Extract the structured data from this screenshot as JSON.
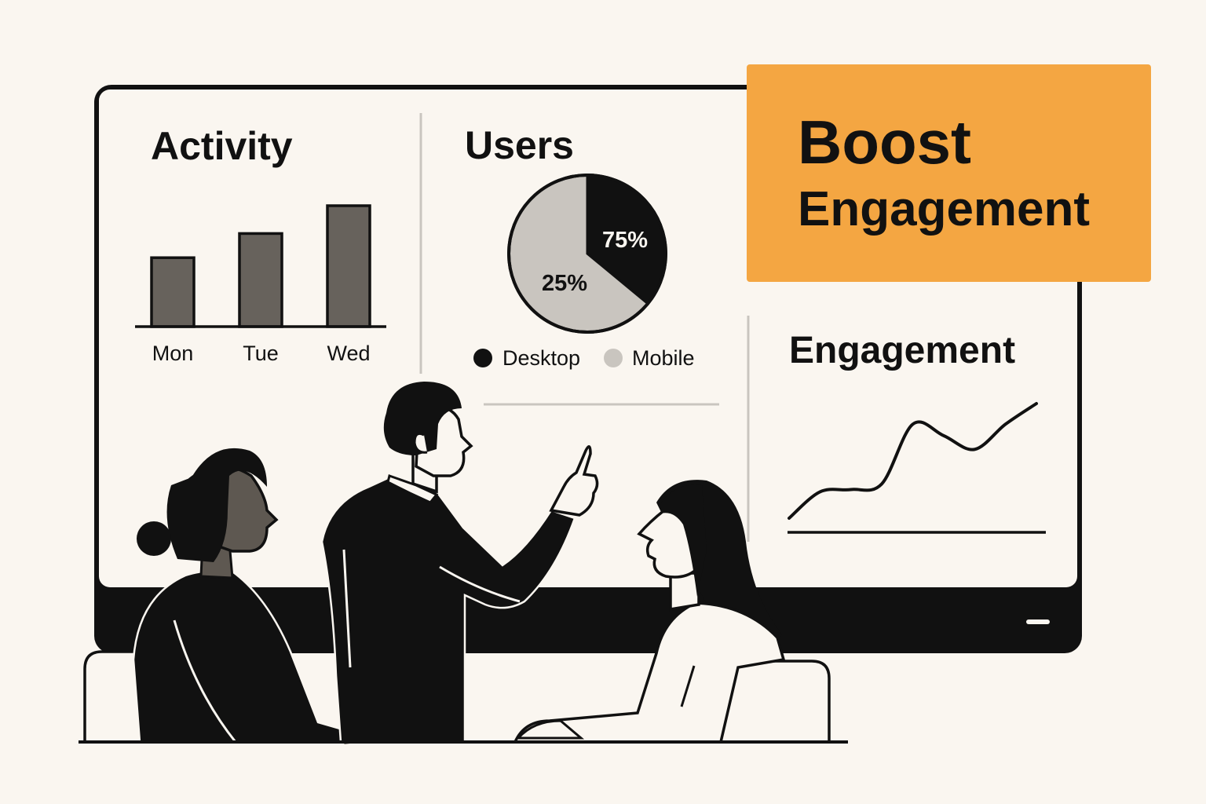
{
  "colors": {
    "background": "#faf6f0",
    "ink": "#111111",
    "bar": "#67625c",
    "pie_mobile": "#c9c5bf",
    "accent": "#f4a642",
    "skin_dark": "#5e5851",
    "white": "#faf6f0"
  },
  "banner": {
    "line1": "Boost",
    "line2": "Engagement"
  },
  "panels": {
    "activity": {
      "title": "Activity"
    },
    "users": {
      "title": "Users",
      "legend": [
        {
          "label": "Desktop",
          "color": "#111111"
        },
        {
          "label": "Mobile",
          "color": "#c9c5bf"
        }
      ]
    },
    "engagement": {
      "title": "Engagement"
    }
  },
  "chart_data": [
    {
      "type": "bar",
      "title": "Activity",
      "categories": [
        "Mon",
        "Tue",
        "Wed"
      ],
      "values": [
        0.57,
        0.77,
        1.0
      ],
      "xlabel": "",
      "ylabel": "",
      "grid": false
    },
    {
      "type": "pie",
      "title": "Users",
      "labels": [
        "Desktop",
        "Mobile"
      ],
      "values": [
        75,
        25
      ],
      "value_labels": [
        "75%",
        "25%"
      ],
      "legend": "bottom"
    },
    {
      "type": "line",
      "title": "Engagement",
      "x": [
        0,
        1,
        2,
        3,
        4,
        5,
        6,
        7,
        8
      ],
      "values": [
        0.0,
        0.23,
        0.25,
        0.3,
        0.82,
        0.72,
        0.6,
        0.82,
        1.0
      ],
      "grid": false
    }
  ],
  "illustration": {
    "figures": [
      "woman-seated-left-icon",
      "man-presenter-pointing-icon",
      "woman-seated-right-icon"
    ],
    "objects": [
      "monitor-icon",
      "chair-left-icon",
      "chair-right-icon",
      "table-icon"
    ]
  }
}
